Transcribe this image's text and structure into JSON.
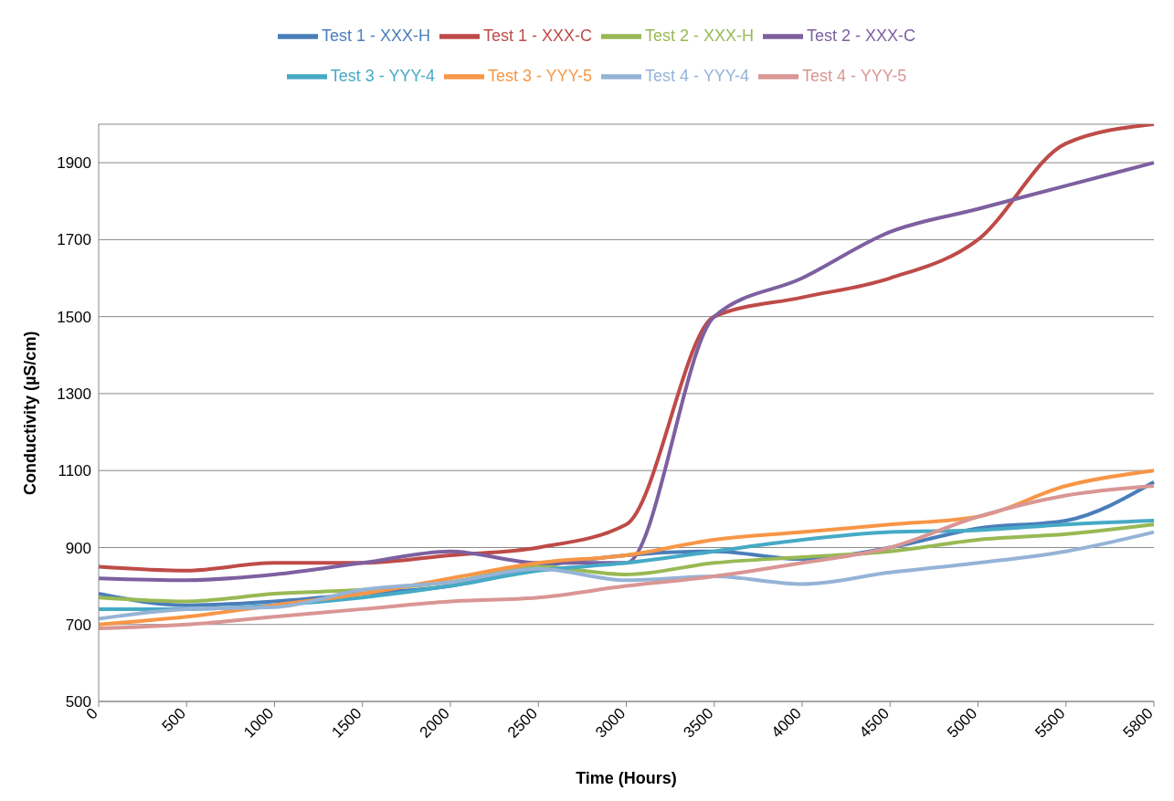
{
  "chart_data": {
    "type": "line",
    "xlabel": "Time (Hours)",
    "ylabel": "Conductivity (µS/cm)",
    "categories": [
      "0",
      "500",
      "1000",
      "1500",
      "2000",
      "2500",
      "3000",
      "3500",
      "4000",
      "4500",
      "5000",
      "5500",
      "5800"
    ],
    "ylim": [
      500,
      2000
    ],
    "yticks": [
      500,
      700,
      900,
      1100,
      1300,
      1500,
      1700,
      1900
    ],
    "grid": "y",
    "legend": "top",
    "marker": "none",
    "line_style": "solid",
    "series": [
      {
        "name": "Test 1 - XXX-H",
        "color": "#4a7ebb",
        "values": [
          780,
          750,
          760,
          780,
          800,
          850,
          880,
          890,
          870,
          900,
          950,
          970,
          1070
        ]
      },
      {
        "name": "Test 1 - XXX-C",
        "color": "#be4b48",
        "values": [
          850,
          840,
          860,
          860,
          880,
          900,
          960,
          1500,
          1550,
          1600,
          1700,
          1950,
          2000
        ]
      },
      {
        "name": "Test 2 - XXX-H",
        "color": "#98b954",
        "values": [
          770,
          760,
          780,
          790,
          810,
          850,
          830,
          860,
          875,
          890,
          920,
          935,
          960
        ]
      },
      {
        "name": "Test 2 - XXX-C",
        "color": "#7d60a0",
        "values": [
          820,
          815,
          830,
          860,
          890,
          860,
          860,
          1500,
          1600,
          1720,
          1780,
          1840,
          1900
        ]
      },
      {
        "name": "Test 3 - YYY-4",
        "color": "#46aac5",
        "values": [
          740,
          740,
          750,
          770,
          800,
          840,
          860,
          890,
          920,
          940,
          945,
          960,
          970
        ]
      },
      {
        "name": "Test 3 - YYY-5",
        "color": "#f79646",
        "values": [
          700,
          720,
          750,
          780,
          820,
          860,
          880,
          920,
          940,
          960,
          980,
          1060,
          1100
        ]
      },
      {
        "name": "Test 4 - YYY-4",
        "color": "#95b3d7",
        "values": [
          715,
          740,
          745,
          790,
          810,
          845,
          815,
          825,
          805,
          835,
          860,
          890,
          940
        ]
      },
      {
        "name": "Test 4 - YYY-5",
        "color": "#d99694",
        "values": [
          690,
          700,
          720,
          740,
          760,
          770,
          800,
          825,
          860,
          900,
          980,
          1035,
          1060
        ]
      }
    ]
  }
}
